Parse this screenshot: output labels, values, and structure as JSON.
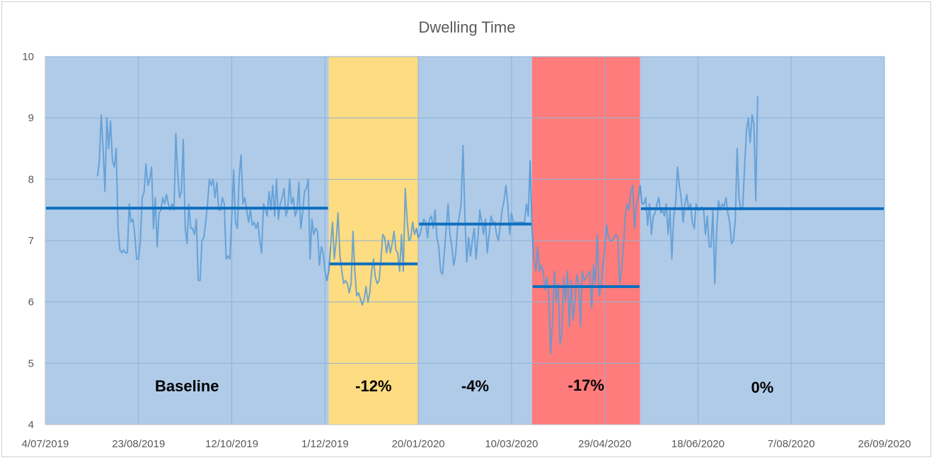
{
  "chart_data": {
    "type": "line",
    "title": "Dwelling Time",
    "xlabel": "",
    "ylabel": "",
    "ylim": [
      4,
      10
    ],
    "yticks": [
      4,
      5,
      6,
      7,
      8,
      9,
      10
    ],
    "xlim": [
      "2019-07-04",
      "2020-09-26"
    ],
    "xtick_labels": [
      "4/07/2019",
      "23/08/2019",
      "12/10/2019",
      "1/12/2019",
      "20/01/2020",
      "10/03/2020",
      "29/04/2020",
      "18/06/2020",
      "7/08/2020",
      "26/09/2020"
    ],
    "grid": true,
    "legend": "none",
    "colors": {
      "background_band": "#afcbe8",
      "gridline": "#8fb2d6",
      "series_line": "#5b9bd5",
      "average_line": "#0e6fbf",
      "highlight_yellow": "#fedc81",
      "highlight_red": "#ff7c7c"
    },
    "periods": [
      {
        "start": "2019-07-04",
        "end": "2019-12-03",
        "color": "#afcbe8",
        "label": "Baseline",
        "average": 7.53
      },
      {
        "start": "2019-12-03",
        "end": "2020-01-20",
        "color": "#fedc81",
        "label": "-12%",
        "average": 6.62
      },
      {
        "start": "2020-01-20",
        "end": "2020-03-21",
        "color": "#afcbe8",
        "label": "-4%",
        "average": 7.27
      },
      {
        "start": "2020-03-21",
        "end": "2020-05-18",
        "color": "#ff7c7c",
        "label": "-17%",
        "average": 6.25
      },
      {
        "start": "2020-05-18",
        "end": "2020-09-26",
        "color": "#afcbe8",
        "label": "0%",
        "average": 7.52
      }
    ],
    "series": [
      {
        "start_date": "2019-08-01",
        "step_days": 1,
        "values": [
          8.05,
          8.3,
          9.05,
          8.5,
          7.8,
          9.0,
          8.5,
          8.95,
          8.3,
          8.2,
          8.5,
          7.2,
          6.85,
          6.8,
          6.85,
          6.8,
          6.8,
          7.6,
          7.3,
          7.35,
          7.1,
          6.7,
          6.7,
          7.0,
          7.7,
          7.8,
          8.25,
          7.9,
          8.0,
          8.2,
          7.2,
          7.7,
          6.9,
          7.45,
          7.5,
          7.7,
          7.6,
          7.75,
          7.6,
          7.5,
          7.6,
          7.5,
          8.75,
          8.1,
          7.7,
          7.8,
          8.65,
          7.2,
          6.95,
          7.6,
          7.2,
          7.2,
          7.1,
          7.35,
          6.35,
          6.35,
          7.0,
          7.05,
          7.3,
          7.6,
          8.0,
          7.9,
          8.0,
          7.7,
          7.95,
          7.5,
          7.5,
          7.7,
          7.6,
          6.7,
          6.75,
          6.7,
          7.4,
          8.15,
          7.3,
          7.2,
          8.05,
          8.4,
          7.6,
          7.7,
          7.5,
          7.3,
          7.5,
          7.25,
          7.3,
          7.2,
          7.3,
          7.0,
          6.8,
          7.6,
          7.5,
          7.4,
          7.8,
          7.5,
          7.9,
          7.4,
          8.0,
          7.35,
          7.6,
          7.7,
          7.85,
          7.4,
          7.5,
          8.0,
          7.6,
          7.7,
          7.4,
          7.5,
          7.95,
          7.2,
          7.45,
          7.8,
          7.85,
          8.0,
          6.7,
          7.35,
          7.1,
          7.2,
          7.15,
          6.6,
          6.9,
          6.8,
          6.5,
          6.35,
          6.5,
          6.9,
          7.3,
          6.7,
          7.0,
          7.45,
          6.75,
          6.5,
          6.3,
          6.35,
          6.3,
          6.15,
          6.3,
          7.15,
          6.5,
          6.1,
          6.15,
          6.05,
          5.95,
          6.05,
          6.25,
          6.0,
          6.15,
          6.5,
          6.7,
          6.4,
          6.3,
          6.35,
          6.7,
          7.1,
          7.05,
          6.8,
          7.0,
          6.8,
          6.95,
          7.15,
          6.85,
          6.8,
          6.5,
          7.1,
          6.5,
          7.85,
          7.35,
          7.0,
          7.05,
          7.3,
          7.1,
          7.2,
          7.05,
          7.1,
          7.25,
          7.35,
          7.3,
          7.05,
          7.35,
          7.4,
          7.2,
          7.5,
          7.05,
          6.9,
          6.5,
          6.45,
          6.8,
          7.2,
          7.6,
          7.1,
          6.9,
          6.6,
          6.75,
          7.2,
          7.4,
          7.6,
          8.55,
          7.4,
          6.65,
          7.05,
          6.75,
          7.0,
          7.2,
          6.7,
          7.05,
          7.5,
          7.3,
          7.1,
          7.35,
          6.8,
          7.1,
          7.4,
          7.3,
          7.3,
          7.1,
          7.0,
          7.25,
          7.5,
          7.65,
          7.9,
          7.6,
          7.1,
          7.45,
          7.3,
          7.3,
          7.3,
          7.3,
          7.3,
          7.3,
          7.3,
          7.6,
          7.4,
          8.3,
          7.2,
          6.7,
          6.5,
          6.9,
          6.5,
          6.6,
          6.5,
          6.2,
          6.4,
          6.1,
          5.15,
          5.7,
          6.5,
          6.0,
          6.3,
          5.3,
          5.5,
          6.4,
          6.0,
          6.5,
          5.6,
          6.35,
          5.7,
          6.0,
          6.45,
          6.3,
          5.6,
          6.5,
          6.35,
          6.4,
          6.45,
          6.5,
          5.9,
          6.6,
          6.3,
          7.1,
          6.1,
          6.25,
          6.6,
          6.85,
          7.25,
          7.05,
          7.0,
          7.0,
          7.05,
          7.1,
          7.05,
          6.3,
          6.5,
          6.9,
          7.4,
          7.6,
          7.5,
          7.8,
          7.9,
          7.2,
          7.6,
          7.7,
          7.9,
          7.6,
          7.6,
          7.7,
          7.25,
          7.6,
          7.1,
          7.4,
          7.45,
          7.6,
          7.7,
          7.45,
          7.5,
          7.4,
          7.6,
          7.1,
          7.5,
          6.7,
          7.4,
          7.6,
          8.2,
          7.9,
          7.7,
          7.3,
          7.6,
          7.75,
          7.5,
          7.6,
          7.3,
          7.2,
          7.6,
          7.5,
          7.5,
          7.55,
          7.5,
          7.1,
          7.4,
          6.9,
          6.9,
          7.5,
          6.3,
          7.15,
          7.65,
          7.5,
          7.6,
          7.55,
          7.7,
          7.45,
          7.3,
          6.95,
          7.0,
          7.35,
          8.5,
          7.7,
          7.5,
          7.55,
          8.2,
          8.8,
          9.0,
          8.6,
          9.05,
          8.9,
          7.65,
          9.35
        ]
      }
    ]
  }
}
